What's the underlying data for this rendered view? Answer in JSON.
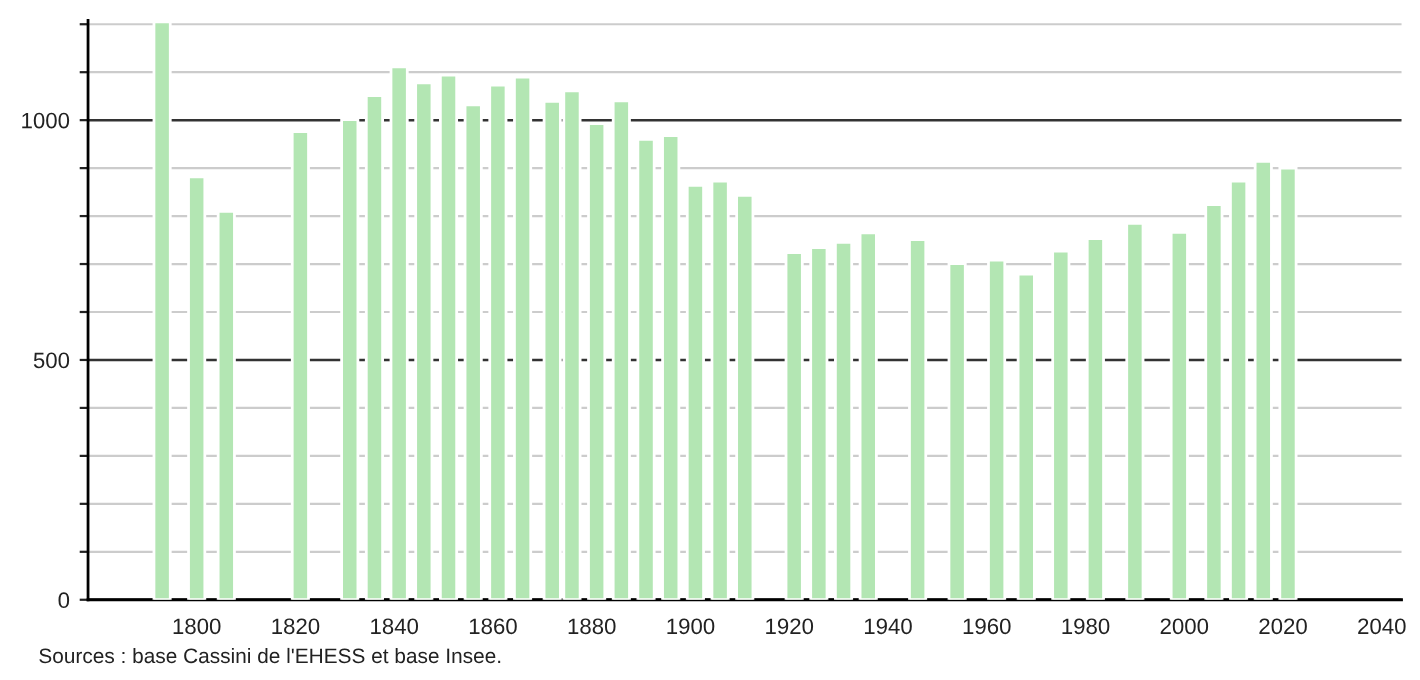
{
  "chart_data": {
    "type": "bar",
    "x": [
      1793,
      1800,
      1806,
      1821,
      1831,
      1836,
      1841,
      1846,
      1851,
      1856,
      1861,
      1866,
      1872,
      1876,
      1881,
      1886,
      1891,
      1896,
      1901,
      1906,
      1911,
      1921,
      1926,
      1931,
      1936,
      1946,
      1954,
      1962,
      1968,
      1975,
      1982,
      1990,
      1999,
      2006,
      2011,
      2016,
      2021
    ],
    "values": [
      1205,
      882,
      810,
      976,
      1001,
      1051,
      1111,
      1078,
      1094,
      1032,
      1073,
      1090,
      1039,
      1061,
      993,
      1040,
      960,
      968,
      864,
      873,
      843,
      724,
      734,
      745,
      765,
      751,
      701,
      708,
      679,
      727,
      753,
      785,
      766,
      824,
      873,
      914,
      900
    ],
    "color": "#b3e6b3",
    "xlim": [
      1778,
      2044
    ],
    "xticks": [
      1800,
      1820,
      1840,
      1860,
      1880,
      1900,
      1920,
      1940,
      1960,
      1980,
      2000,
      2020,
      2040
    ],
    "ylim": [
      0,
      1208
    ],
    "yticks": [
      0,
      {
        "value": 100,
        "label": null
      },
      {
        "value": 200,
        "label": null
      },
      {
        "value": 300,
        "label": null
      },
      {
        "value": 400,
        "label": null
      },
      500,
      {
        "value": 600,
        "label": null
      },
      {
        "value": 700,
        "label": null
      },
      {
        "value": 800,
        "label": null
      },
      {
        "value": 900,
        "label": null
      },
      1000,
      {
        "value": 1100,
        "label": null
      },
      {
        "value": 1200,
        "label": null
      }
    ],
    "grid": "y",
    "annotations": [
      "Sources : base Cassini de l'EHESS et base Insee."
    ]
  }
}
